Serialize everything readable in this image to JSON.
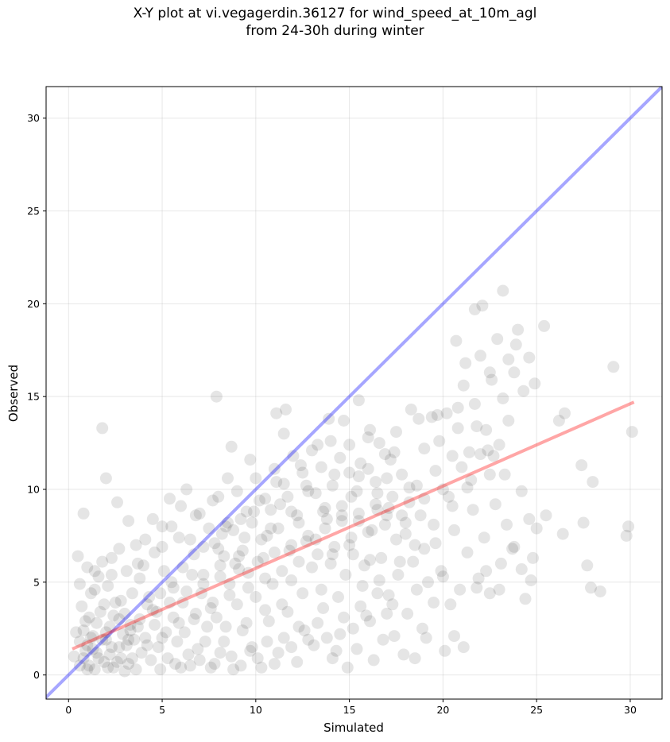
{
  "chart_data": {
    "type": "scatter",
    "title_line1": "X-Y plot at vi.vegagerdin.36127 for wind_speed_at_10m_agl",
    "title_line2": "from 24-30h during winter",
    "xlabel": "Simulated",
    "ylabel": "Observed",
    "xlim": [
      -1.2,
      31.7
    ],
    "ylim": [
      -1.3,
      31.7
    ],
    "xticks": [
      0,
      5,
      10,
      15,
      20,
      25,
      30
    ],
    "yticks": [
      0,
      5,
      10,
      15,
      20,
      25,
      30
    ],
    "grid": true,
    "point_color": "#000000",
    "point_alpha": 0.1,
    "identity_line": {
      "color": "#0000ff",
      "alpha": 0.35
    },
    "regression_line": {
      "color": "#ff0000",
      "alpha": 0.35,
      "x": [
        0.2,
        30.2
      ],
      "y": [
        1.4,
        14.7
      ]
    },
    "points": [
      [
        0.8,
        0.9
      ],
      [
        1.1,
        0.5
      ],
      [
        1.5,
        1.2
      ],
      [
        0.6,
        1.8
      ],
      [
        1.9,
        0.7
      ],
      [
        2.4,
        0.4
      ],
      [
        2.8,
        0.9
      ],
      [
        3.2,
        0.6
      ],
      [
        1.3,
        2.1
      ],
      [
        0.9,
        2.9
      ],
      [
        1.7,
        3.4
      ],
      [
        2.2,
        2.6
      ],
      [
        2.9,
        2.2
      ],
      [
        3.5,
        1.9
      ],
      [
        3.9,
        1.2
      ],
      [
        4.4,
        0.8
      ],
      [
        4.8,
        1.5
      ],
      [
        5.3,
        0.9
      ],
      [
        5.8,
        1.8
      ],
      [
        6.4,
        1.1
      ],
      [
        0.7,
        3.7
      ],
      [
        1.2,
        4.4
      ],
      [
        1.6,
        5.3
      ],
      [
        2.1,
        4.8
      ],
      [
        2.5,
        3.9
      ],
      [
        3.0,
        3.3
      ],
      [
        3.4,
        4.4
      ],
      [
        3.8,
        5.2
      ],
      [
        4.3,
        4.2
      ],
      [
        4.7,
        3.4
      ],
      [
        5.1,
        5.6
      ],
      [
        5.6,
        4.7
      ],
      [
        6.1,
        3.9
      ],
      [
        6.6,
        5.4
      ],
      [
        7.1,
        4.4
      ],
      [
        7.6,
        3.6
      ],
      [
        8.1,
        5.9
      ],
      [
        8.6,
        4.9
      ],
      [
        9.1,
        6.4
      ],
      [
        9.6,
        5.5
      ],
      [
        0.5,
        6.4
      ],
      [
        0.8,
        8.7
      ],
      [
        1.4,
        5.6
      ],
      [
        1.8,
        13.3
      ],
      [
        2.0,
        10.6
      ],
      [
        2.3,
        6.3
      ],
      [
        2.6,
        9.3
      ],
      [
        3.2,
        8.3
      ],
      [
        3.7,
        6.0
      ],
      [
        4.1,
        7.3
      ],
      [
        4.6,
        6.6
      ],
      [
        5.0,
        8.0
      ],
      [
        5.4,
        9.5
      ],
      [
        5.9,
        7.4
      ],
      [
        6.3,
        10.0
      ],
      [
        6.8,
        8.6
      ],
      [
        7.2,
        6.9
      ],
      [
        7.7,
        9.4
      ],
      [
        8.2,
        7.6
      ],
      [
        8.5,
        10.6
      ],
      [
        8.7,
        12.3
      ],
      [
        9.2,
        8.4
      ],
      [
        9.7,
        11.6
      ],
      [
        10.2,
        9.4
      ],
      [
        10.6,
        7.5
      ],
      [
        11.1,
        10.4
      ],
      [
        11.5,
        13.0
      ],
      [
        11.9,
        8.8
      ],
      [
        12.4,
        11.3
      ],
      [
        12.8,
        9.9
      ],
      [
        13.3,
        12.4
      ],
      [
        13.8,
        8.4
      ],
      [
        14.2,
        10.8
      ],
      [
        14.7,
        13.7
      ],
      [
        15.1,
        9.6
      ],
      [
        15.6,
        11.4
      ],
      [
        16.0,
        12.8
      ],
      [
        16.5,
        8.9
      ],
      [
        17.0,
        10.6
      ],
      [
        17.5,
        13.1
      ],
      [
        7.9,
        15.0
      ],
      [
        11.1,
        14.1
      ],
      [
        11.6,
        14.3
      ],
      [
        13.9,
        13.8
      ],
      [
        15.5,
        14.8
      ],
      [
        6.2,
        2.3
      ],
      [
        6.9,
        1.4
      ],
      [
        7.4,
        2.6
      ],
      [
        7.8,
        0.6
      ],
      [
        8.3,
        1.8
      ],
      [
        8.8,
        0.3
      ],
      [
        9.3,
        2.4
      ],
      [
        9.8,
        1.5
      ],
      [
        10.3,
        0.4
      ],
      [
        10.7,
        2.9
      ],
      [
        11.2,
        1.2
      ],
      [
        11.7,
        3.4
      ],
      [
        12.2,
        0.7
      ],
      [
        12.6,
        2.4
      ],
      [
        13.1,
        1.6
      ],
      [
        13.6,
        3.6
      ],
      [
        14.1,
        0.9
      ],
      [
        14.5,
        2.2
      ],
      [
        14.9,
        0.4
      ],
      [
        15.4,
        1.4
      ],
      [
        15.9,
        3.2
      ],
      [
        16.3,
        0.8
      ],
      [
        16.8,
        1.9
      ],
      [
        17.3,
        3.8
      ],
      [
        17.9,
        1.1
      ],
      [
        18.5,
        0.9
      ],
      [
        19.1,
        2.0
      ],
      [
        20.6,
        2.1
      ],
      [
        21.1,
        1.5
      ],
      [
        8.0,
        6.8
      ],
      [
        8.4,
        8.0
      ],
      [
        8.9,
        6.0
      ],
      [
        9.4,
        7.4
      ],
      [
        9.9,
        8.8
      ],
      [
        10.4,
        6.3
      ],
      [
        10.8,
        7.9
      ],
      [
        11.3,
        9.2
      ],
      [
        11.8,
        6.7
      ],
      [
        12.3,
        8.2
      ],
      [
        12.7,
        10.2
      ],
      [
        13.2,
        7.3
      ],
      [
        13.7,
        9.0
      ],
      [
        14.1,
        6.5
      ],
      [
        14.6,
        8.6
      ],
      [
        15.0,
        7.0
      ],
      [
        15.4,
        9.9
      ],
      [
        15.8,
        5.9
      ],
      [
        16.2,
        7.8
      ],
      [
        16.7,
        6.3
      ],
      [
        17.1,
        9.0
      ],
      [
        17.6,
        5.4
      ],
      [
        18.0,
        7.6
      ],
      [
        18.4,
        6.1
      ],
      [
        18.8,
        8.6
      ],
      [
        19.2,
        5.0
      ],
      [
        19.6,
        7.1
      ],
      [
        19.9,
        5.6
      ],
      [
        20.3,
        9.6
      ],
      [
        20.6,
        7.8
      ],
      [
        20.9,
        4.6
      ],
      [
        21.3,
        6.6
      ],
      [
        21.6,
        8.9
      ],
      [
        21.9,
        5.2
      ],
      [
        22.2,
        7.4
      ],
      [
        22.5,
        4.4
      ],
      [
        22.8,
        9.2
      ],
      [
        23.1,
        6.0
      ],
      [
        23.4,
        8.1
      ],
      [
        23.8,
        6.9
      ],
      [
        24.2,
        5.7
      ],
      [
        24.6,
        8.4
      ],
      [
        25.0,
        7.9
      ],
      [
        24.8,
        6.3
      ],
      [
        26.4,
        7.6
      ],
      [
        27.5,
        8.2
      ],
      [
        28.0,
        10.4
      ],
      [
        27.7,
        5.9
      ],
      [
        27.9,
        4.7
      ],
      [
        28.4,
        4.5
      ],
      [
        29.8,
        7.5
      ],
      [
        30.1,
        13.1
      ],
      [
        29.9,
        8.0
      ],
      [
        27.4,
        11.3
      ],
      [
        26.2,
        13.7
      ],
      [
        26.5,
        14.1
      ],
      [
        25.5,
        8.6
      ],
      [
        24.4,
        4.1
      ],
      [
        24.7,
        5.1
      ],
      [
        19.4,
        13.9
      ],
      [
        19.8,
        12.6
      ],
      [
        20.2,
        14.1
      ],
      [
        20.5,
        11.8
      ],
      [
        20.8,
        13.3
      ],
      [
        21.1,
        15.6
      ],
      [
        21.4,
        12.0
      ],
      [
        21.7,
        14.6
      ],
      [
        22.0,
        17.2
      ],
      [
        22.3,
        13.2
      ],
      [
        22.6,
        15.9
      ],
      [
        22.9,
        18.1
      ],
      [
        23.2,
        14.9
      ],
      [
        23.5,
        17.0
      ],
      [
        23.8,
        16.3
      ],
      [
        24.0,
        18.6
      ],
      [
        24.3,
        15.3
      ],
      [
        24.6,
        17.1
      ],
      [
        24.9,
        15.7
      ],
      [
        25.4,
        18.8
      ],
      [
        20.7,
        18.0
      ],
      [
        21.7,
        19.7
      ],
      [
        22.1,
        19.9
      ],
      [
        23.2,
        20.7
      ],
      [
        21.2,
        16.8
      ],
      [
        22.5,
        16.3
      ],
      [
        23.9,
        17.8
      ],
      [
        29.1,
        16.6
      ],
      [
        19.6,
        11.0
      ],
      [
        19.0,
        12.2
      ],
      [
        18.6,
        10.2
      ],
      [
        18.2,
        9.3
      ],
      [
        17.8,
        10.8
      ],
      [
        17.4,
        12.0
      ],
      [
        16.9,
        11.9
      ],
      [
        16.4,
        10.4
      ],
      [
        18.3,
        14.3
      ],
      [
        18.7,
        13.8
      ],
      [
        16.1,
        13.2
      ],
      [
        16.6,
        12.5
      ],
      [
        17.2,
        11.6
      ],
      [
        0.4,
        2.3
      ],
      [
        0.6,
        0.5
      ],
      [
        0.3,
        1.0
      ],
      [
        1.0,
        1.6
      ],
      [
        1.4,
        0.3
      ],
      [
        2.0,
        1.9
      ],
      [
        2.7,
        1.5
      ],
      [
        3.3,
        2.7
      ],
      [
        3.6,
        0.3
      ],
      [
        4.1,
        2.0
      ],
      [
        4.6,
        2.7
      ],
      [
        5.2,
        2.3
      ],
      [
        5.6,
        3.1
      ],
      [
        6.0,
        0.4
      ],
      [
        6.7,
        3.0
      ],
      [
        7.3,
        1.8
      ],
      [
        7.9,
        3.1
      ],
      [
        8.4,
        2.6
      ],
      [
        9.0,
        3.8
      ],
      [
        9.5,
        2.8
      ],
      [
        10.0,
        4.2
      ],
      [
        10.5,
        3.5
      ],
      [
        10.9,
        4.9
      ],
      [
        11.4,
        3.8
      ],
      [
        11.9,
        5.1
      ],
      [
        12.5,
        4.4
      ],
      [
        13.0,
        5.8
      ],
      [
        13.5,
        4.6
      ],
      [
        14.0,
        6.0
      ],
      [
        14.4,
        4.2
      ],
      [
        14.8,
        5.4
      ],
      [
        15.2,
        6.5
      ],
      [
        15.7,
        4.8
      ],
      [
        16.1,
        6.2
      ],
      [
        16.6,
        5.1
      ],
      [
        17.1,
        4.3
      ],
      [
        17.7,
        6.1
      ],
      [
        18.1,
        3.3
      ],
      [
        18.6,
        4.6
      ],
      [
        19.0,
        6.8
      ],
      [
        19.5,
        3.9
      ],
      [
        20.0,
        5.3
      ],
      [
        20.4,
        3.8
      ],
      [
        3.8,
        3.0
      ],
      [
        4.2,
        3.8
      ],
      [
        4.9,
        4.4
      ],
      [
        5.5,
        5.0
      ],
      [
        6.1,
        5.8
      ],
      [
        6.7,
        6.5
      ],
      [
        7.2,
        5.4
      ],
      [
        7.8,
        7.1
      ],
      [
        8.3,
        6.4
      ],
      [
        8.8,
        7.8
      ],
      [
        9.3,
        6.7
      ],
      [
        9.8,
        8.2
      ],
      [
        10.3,
        7.3
      ],
      [
        10.8,
        8.9
      ],
      [
        11.2,
        7.9
      ],
      [
        11.7,
        9.6
      ],
      [
        12.2,
        8.6
      ],
      [
        12.7,
        7.2
      ],
      [
        13.2,
        9.8
      ],
      [
        13.6,
        8.8
      ],
      [
        14.1,
        10.2
      ],
      [
        14.6,
        9.1
      ],
      [
        15.0,
        10.9
      ],
      [
        15.5,
        8.3
      ],
      [
        1.0,
        0.3
      ],
      [
        1.3,
        1.4
      ],
      [
        1.8,
        1.9
      ],
      [
        2.2,
        1.1
      ],
      [
        2.6,
        0.7
      ],
      [
        3.1,
        1.6
      ],
      [
        3.4,
        0.9
      ],
      [
        0.8,
        2.4
      ],
      [
        1.1,
        3.1
      ],
      [
        1.5,
        2.8
      ],
      [
        1.9,
        3.8
      ],
      [
        2.4,
        3.2
      ],
      [
        2.8,
        4.0
      ],
      [
        3.3,
        2.4
      ],
      [
        0.6,
        4.9
      ],
      [
        1.0,
        5.8
      ],
      [
        1.4,
        4.6
      ],
      [
        1.8,
        6.1
      ],
      [
        2.3,
        5.4
      ],
      [
        2.7,
        6.8
      ],
      [
        3.1,
        5.6
      ],
      [
        3.6,
        7.0
      ],
      [
        4.0,
        5.9
      ],
      [
        4.5,
        8.4
      ],
      [
        5.0,
        6.9
      ],
      [
        5.5,
        8.0
      ],
      [
        6.0,
        9.1
      ],
      [
        6.5,
        7.3
      ],
      [
        7.0,
        8.7
      ],
      [
        7.5,
        7.9
      ],
      [
        8.0,
        9.6
      ],
      [
        8.5,
        8.2
      ],
      [
        9.0,
        9.9
      ],
      [
        9.5,
        8.8
      ],
      [
        10.0,
        10.6
      ],
      [
        10.5,
        9.5
      ],
      [
        11.0,
        11.1
      ],
      [
        11.5,
        10.3
      ],
      [
        12.0,
        11.8
      ],
      [
        12.5,
        10.9
      ],
      [
        13.0,
        12.1
      ],
      [
        13.5,
        11.2
      ],
      [
        14.0,
        12.6
      ],
      [
        14.5,
        11.7
      ],
      [
        15.0,
        12.4
      ],
      [
        15.5,
        10.7
      ],
      [
        16.0,
        11.1
      ],
      [
        16.5,
        9.8
      ],
      [
        17.0,
        8.6
      ],
      [
        17.5,
        7.3
      ],
      [
        18.0,
        8.2
      ],
      [
        18.5,
        7.0
      ],
      [
        19.0,
        9.5
      ],
      [
        19.5,
        8.1
      ],
      [
        20.0,
        10.0
      ],
      [
        20.5,
        9.1
      ],
      [
        21.0,
        11.2
      ],
      [
        21.5,
        10.5
      ],
      [
        22.0,
        11.9
      ],
      [
        22.5,
        10.8
      ],
      [
        23.0,
        12.4
      ],
      [
        23.5,
        13.7
      ],
      [
        22.4,
        12.1
      ],
      [
        21.8,
        13.4
      ],
      [
        20.8,
        14.4
      ],
      [
        19.7,
        14.0
      ],
      [
        3.0,
        0.2
      ],
      [
        2.1,
        0.4
      ],
      [
        4.9,
        0.3
      ],
      [
        5.7,
        0.6
      ],
      [
        6.5,
        0.5
      ],
      [
        7.0,
        0.8
      ],
      [
        7.6,
        0.4
      ],
      [
        8.1,
        1.2
      ],
      [
        8.7,
        1.0
      ],
      [
        9.2,
        0.5
      ],
      [
        9.7,
        1.3
      ],
      [
        10.1,
        0.9
      ],
      [
        10.6,
        1.8
      ],
      [
        11.0,
        0.6
      ],
      [
        11.5,
        2.0
      ],
      [
        11.9,
        1.5
      ],
      [
        12.3,
        2.6
      ],
      [
        12.8,
        1.9
      ],
      [
        13.3,
        2.8
      ],
      [
        13.8,
        2.0
      ],
      [
        14.3,
        1.3
      ],
      [
        14.7,
        3.1
      ],
      [
        15.2,
        2.5
      ],
      [
        15.6,
        3.7
      ],
      [
        16.1,
        2.9
      ],
      [
        16.5,
        4.4
      ],
      [
        17.0,
        3.3
      ],
      [
        17.4,
        2.1
      ],
      [
        18.9,
        2.5
      ],
      [
        20.1,
        1.3
      ],
      [
        21.8,
        4.7
      ],
      [
        22.3,
        5.6
      ],
      [
        23.0,
        4.6
      ],
      [
        23.7,
        6.8
      ],
      [
        24.2,
        9.9
      ],
      [
        23.3,
        10.8
      ],
      [
        22.7,
        11.8
      ],
      [
        21.3,
        10.1
      ],
      [
        0.9,
        1.3
      ],
      [
        1.2,
        2.0
      ],
      [
        1.6,
        0.9
      ],
      [
        2.0,
        2.3
      ],
      [
        2.3,
        1.5
      ],
      [
        2.7,
        3.0
      ],
      [
        3.2,
        1.9
      ],
      [
        3.7,
        2.6
      ],
      [
        4.2,
        1.6
      ],
      [
        4.5,
        3.5
      ],
      [
        5.0,
        2.0
      ],
      [
        5.4,
        3.9
      ],
      [
        5.9,
        2.8
      ],
      [
        6.3,
        4.5
      ],
      [
        6.8,
        3.3
      ],
      [
        7.2,
        4.9
      ],
      [
        7.7,
        3.9
      ],
      [
        8.1,
        5.3
      ],
      [
        8.6,
        4.3
      ],
      [
        9.1,
        5.7
      ],
      [
        9.6,
        4.7
      ],
      [
        10.1,
        6.1
      ],
      [
        10.5,
        5.2
      ],
      [
        11.0,
        6.6
      ],
      [
        11.4,
        5.6
      ],
      [
        11.9,
        7.0
      ],
      [
        12.3,
        6.1
      ],
      [
        12.8,
        7.5
      ],
      [
        13.3,
        6.5
      ],
      [
        13.7,
        7.9
      ],
      [
        14.2,
        6.9
      ],
      [
        14.6,
        8.3
      ],
      [
        15.1,
        7.4
      ],
      [
        15.5,
        8.7
      ],
      [
        16.0,
        7.7
      ],
      [
        16.4,
        9.2
      ],
      [
        16.9,
        8.1
      ],
      [
        17.3,
        9.6
      ],
      [
        17.8,
        8.6
      ],
      [
        18.2,
        10.1
      ]
    ]
  }
}
